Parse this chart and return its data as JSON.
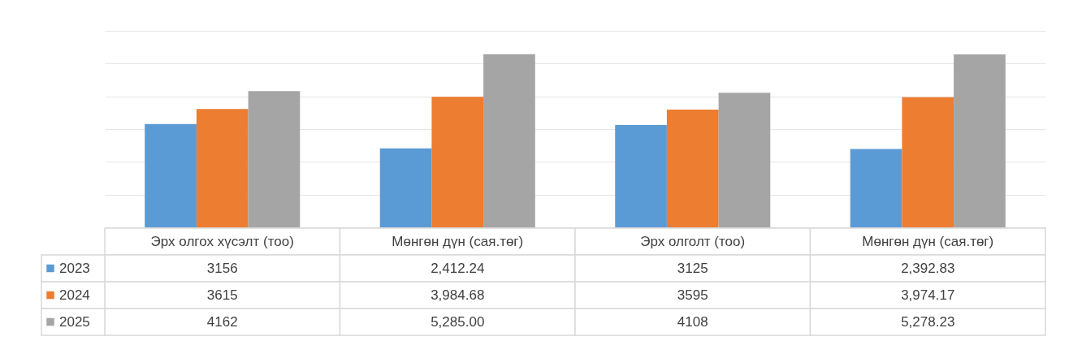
{
  "chart_data": {
    "type": "bar",
    "categories": [
      "Эрх олгох хүсэлт (тоо)",
      "Мөнгөн дүн (сая.төг)",
      "Эрх олголт (тоо)",
      "Мөнгөн дүн (сая.төг)"
    ],
    "series": [
      {
        "name": "2023",
        "color": "#5b9bd5",
        "values": [
          3156,
          2412.24,
          3125,
          2392.83
        ],
        "value_labels": [
          "3156",
          "2,412.24",
          "3125",
          "2,392.83"
        ]
      },
      {
        "name": "2024",
        "color": "#ed7d31",
        "values": [
          3615,
          3984.68,
          3595,
          3974.17
        ],
        "value_labels": [
          "3615",
          "3,984.68",
          "3595",
          "3,974.17"
        ]
      },
      {
        "name": "2025",
        "color": "#a5a5a5",
        "values": [
          4162,
          5285.0,
          4108,
          5278.23
        ],
        "value_labels": [
          "4162",
          "5,285.00",
          "4108",
          "5,278.23"
        ]
      }
    ],
    "ylim": [
      0,
      6000
    ],
    "yticks": [
      {
        "value": 0,
        "label": null
      },
      {
        "value": 1000,
        "label": null
      },
      {
        "value": 2000,
        "label": null
      },
      {
        "value": 3000,
        "label": null
      },
      {
        "value": 4000,
        "label": null
      },
      {
        "value": 5000,
        "label": null
      },
      {
        "value": 6000,
        "label": null
      }
    ],
    "grid": "y",
    "legend": "bottom left",
    "tick_labels": "x"
  }
}
